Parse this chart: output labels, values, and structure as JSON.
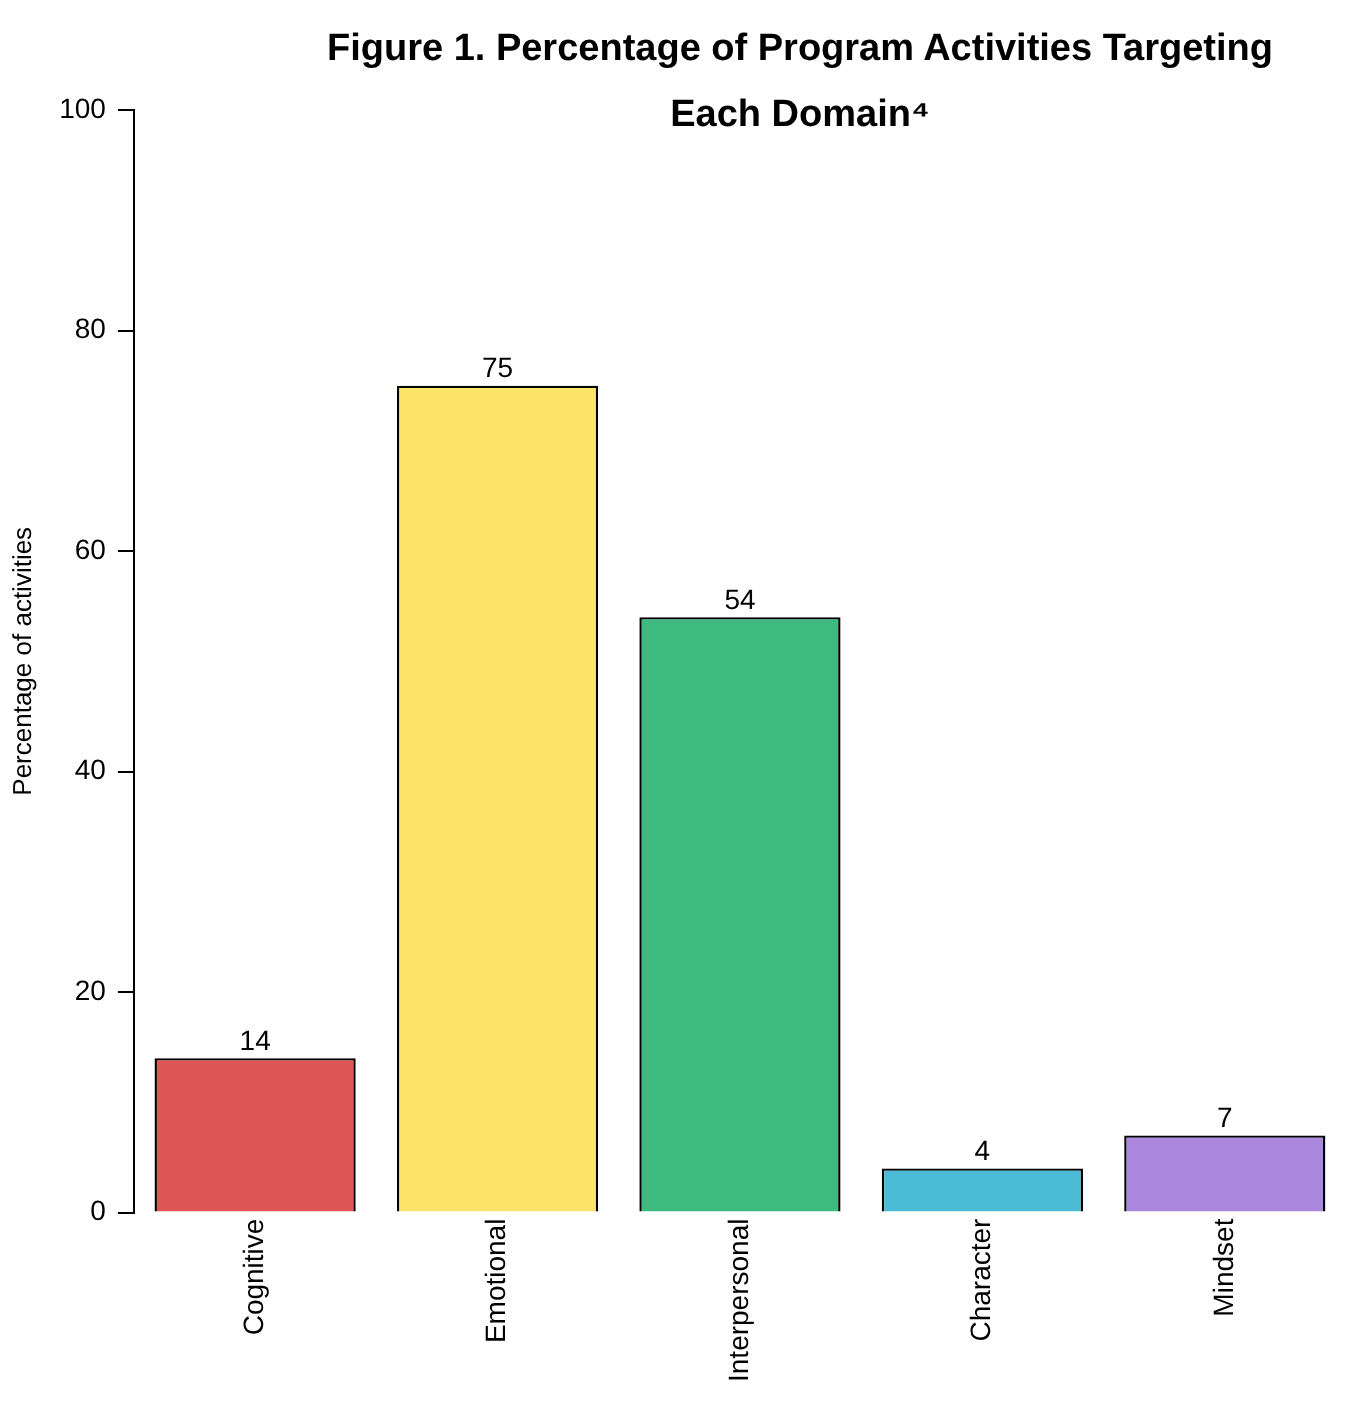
{
  "chart_data": {
    "type": "bar",
    "title": "Figure 1. Percentage of Program Activities Targeting Each Domain⁴",
    "ylabel": "Percentage of activities",
    "categories": [
      "Cognitive",
      "Emotional",
      "Interpersonal",
      "Character",
      "Mindset"
    ],
    "values": [
      14,
      75,
      54,
      4,
      7
    ],
    "colors": [
      "#e05555",
      "#fde468",
      "#3dba80",
      "#4bbcd6",
      "#a887dd"
    ],
    "ylim": [
      0,
      100
    ],
    "yticks": [
      0,
      20,
      40,
      60,
      80,
      100
    ],
    "grid": false,
    "legend": false,
    "data_labels": true
  }
}
